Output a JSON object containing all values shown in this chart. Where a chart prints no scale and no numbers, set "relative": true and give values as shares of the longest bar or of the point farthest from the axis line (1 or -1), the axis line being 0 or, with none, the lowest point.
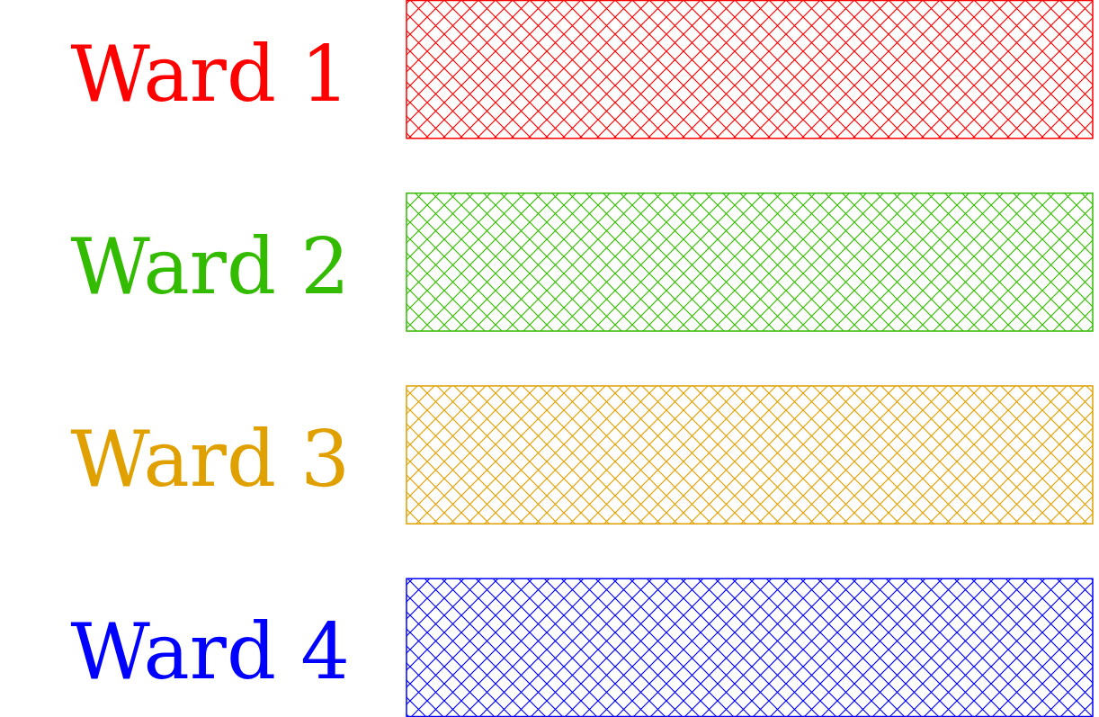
{
  "chart_data": {
    "type": "bar",
    "orientation": "horizontal",
    "relative": true,
    "categories": [
      "Ward 1",
      "Ward 2",
      "Ward 3",
      "Ward 4"
    ],
    "values": [
      1,
      1,
      1,
      1
    ],
    "colors": [
      "#ff0000",
      "#33bb00",
      "#e0a000",
      "#0000ff"
    ]
  }
}
